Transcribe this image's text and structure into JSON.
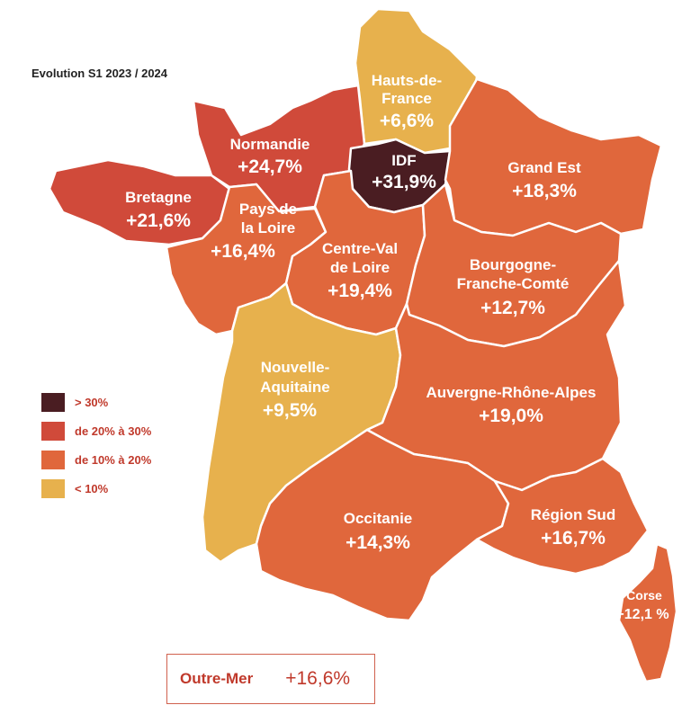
{
  "title": "Evolution S1 2023 / 2024",
  "colors": {
    "gt30": "#4a1d22",
    "20to30": "#d04a3a",
    "10to20": "#e0673c",
    "lt10": "#e7b14d",
    "border": "#ffffff"
  },
  "legend": [
    {
      "label": "> 30%",
      "color_key": "gt30"
    },
    {
      "label": "de 20% à 30%",
      "color_key": "20to30"
    },
    {
      "label": "de 10% à 20%",
      "color_key": "10to20"
    },
    {
      "label": "< 10%",
      "color_key": "lt10"
    }
  ],
  "regions": {
    "hauts_de_france": {
      "name_lines": [
        "Hauts-de-",
        "France"
      ],
      "value": "+6,6%",
      "color_key": "lt10"
    },
    "normandie": {
      "name_lines": [
        "Normandie"
      ],
      "value": "+24,7%",
      "color_key": "20to30"
    },
    "idf": {
      "name_lines": [
        "IDF"
      ],
      "value": "+31,9%",
      "color_key": "gt30"
    },
    "grand_est": {
      "name_lines": [
        "Grand Est"
      ],
      "value": "+18,3%",
      "color_key": "10to20"
    },
    "bretagne": {
      "name_lines": [
        "Bretagne"
      ],
      "value": "+21,6%",
      "color_key": "20to30"
    },
    "pays_de_la_loire": {
      "name_lines": [
        "Pays de",
        "la Loire"
      ],
      "value": "+16,4%",
      "color_key": "10to20"
    },
    "centre_val_de_loire": {
      "name_lines": [
        "Centre-Val",
        "de Loire"
      ],
      "value": "+19,4%",
      "color_key": "10to20"
    },
    "bourgogne_franche_comte": {
      "name_lines": [
        "Bourgogne-",
        "Franche-Comté"
      ],
      "value": "+12,7%",
      "color_key": "10to20"
    },
    "nouvelle_aquitaine": {
      "name_lines": [
        "Nouvelle-",
        "Aquitaine"
      ],
      "value": "+9,5%",
      "color_key": "lt10"
    },
    "auvergne_rhone_alpes": {
      "name_lines": [
        "Auvergne-Rhône-Alpes"
      ],
      "value": "+19,0%",
      "color_key": "10to20"
    },
    "occitanie": {
      "name_lines": [
        "Occitanie"
      ],
      "value": "+14,3%",
      "color_key": "10to20"
    },
    "region_sud": {
      "name_lines": [
        "Région Sud"
      ],
      "value": "+16,7%",
      "color_key": "10to20"
    },
    "corse": {
      "name_lines": [
        "Corse"
      ],
      "value": "+12,1 %",
      "color_key": "10to20"
    }
  },
  "outre_mer": {
    "name": "Outre-Mer",
    "value": "+16,6%"
  }
}
